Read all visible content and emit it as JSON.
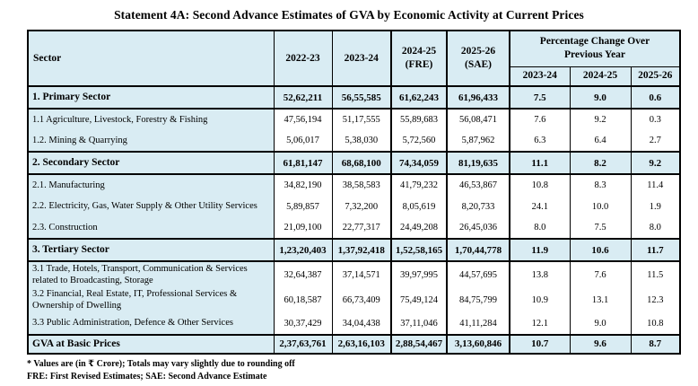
{
  "title": "Statement 4A: Second Advance Estimates of GVA by Economic Activity at Current Prices",
  "colors": {
    "header_bg": "#d9ecf3",
    "border": "#000000"
  },
  "table": {
    "header": {
      "sector": "Sector",
      "year_columns": [
        "2022-23",
        "2023-24",
        "2024-25\n(FRE)",
        "2025-26\n(SAE)"
      ],
      "pct_group": "Percentage Change Over\nPrevious Year",
      "pct_years": [
        "2023-24",
        "2024-25",
        "2025-26"
      ]
    },
    "rows": [
      {
        "style": "section",
        "label": "1. Primary Sector",
        "values": [
          "52,62,211",
          "56,55,585",
          "61,62,243",
          "61,96,433",
          "7.5",
          "9.0",
          "0.6"
        ]
      },
      {
        "style": "sub",
        "label": "1.1 Agriculture, Livestock, Forestry & Fishing",
        "values": [
          "47,56,194",
          "51,17,555",
          "55,89,683",
          "56,08,471",
          "7.6",
          "9.2",
          "0.3"
        ]
      },
      {
        "style": "sub",
        "label": "1.2. Mining & Quarrying",
        "values": [
          "5,06,017",
          "5,38,030",
          "5,72,560",
          "5,87,962",
          "6.3",
          "6.4",
          "2.7"
        ]
      },
      {
        "style": "section",
        "label": "2. Secondary Sector",
        "values": [
          "61,81,147",
          "68,68,100",
          "74,34,059",
          "81,19,635",
          "11.1",
          "8.2",
          "9.2"
        ]
      },
      {
        "style": "sub",
        "label": "2.1. Manufacturing",
        "values": [
          "34,82,190",
          "38,58,583",
          "41,79,232",
          "46,53,867",
          "10.8",
          "8.3",
          "11.4"
        ]
      },
      {
        "style": "sub",
        "label": "2.2. Electricity, Gas, Water Supply & Other Utility Services",
        "values": [
          "5,89,857",
          "7,32,200",
          "8,05,619",
          "8,20,733",
          "24.1",
          "10.0",
          "1.9"
        ]
      },
      {
        "style": "sub",
        "label": "2.3. Construction",
        "values": [
          "21,09,100",
          "22,77,317",
          "24,49,208",
          "26,45,036",
          "8.0",
          "7.5",
          "8.0"
        ]
      },
      {
        "style": "section",
        "label": "3. Tertiary Sector",
        "values": [
          "1,23,20,403",
          "1,37,92,418",
          "1,52,58,165",
          "1,70,44,778",
          "11.9",
          "10.6",
          "11.7"
        ]
      },
      {
        "style": "sub",
        "label": "3.1 Trade, Hotels, Transport, Communication & Services related to Broadcasting, Storage",
        "values": [
          "32,64,387",
          "37,14,571",
          "39,97,995",
          "44,57,695",
          "13.8",
          "7.6",
          "11.5"
        ]
      },
      {
        "style": "sub",
        "label": "3.2 Financial, Real Estate, IT, Professional Services & Ownership of Dwelling",
        "values": [
          "60,18,587",
          "66,73,409",
          "75,49,124",
          "84,75,799",
          "10.9",
          "13.1",
          "12.3"
        ]
      },
      {
        "style": "sub",
        "label": "3.3 Public Administration, Defence & Other Services",
        "values": [
          "30,37,429",
          "34,04,438",
          "37,11,046",
          "41,11,284",
          "12.1",
          "9.0",
          "10.8"
        ]
      },
      {
        "style": "total",
        "label": "GVA at Basic Prices",
        "values": [
          "2,37,63,761",
          "2,63,16,103",
          "2,88,54,467",
          "3,13,60,846",
          "10.7",
          "9.6",
          "8.7"
        ]
      }
    ]
  },
  "footnotes": [
    "* Values are (in ₹ Crore); Totals may vary slightly due to rounding off",
    "FRE: First Revised Estimates; SAE: Second Advance Estimate"
  ]
}
